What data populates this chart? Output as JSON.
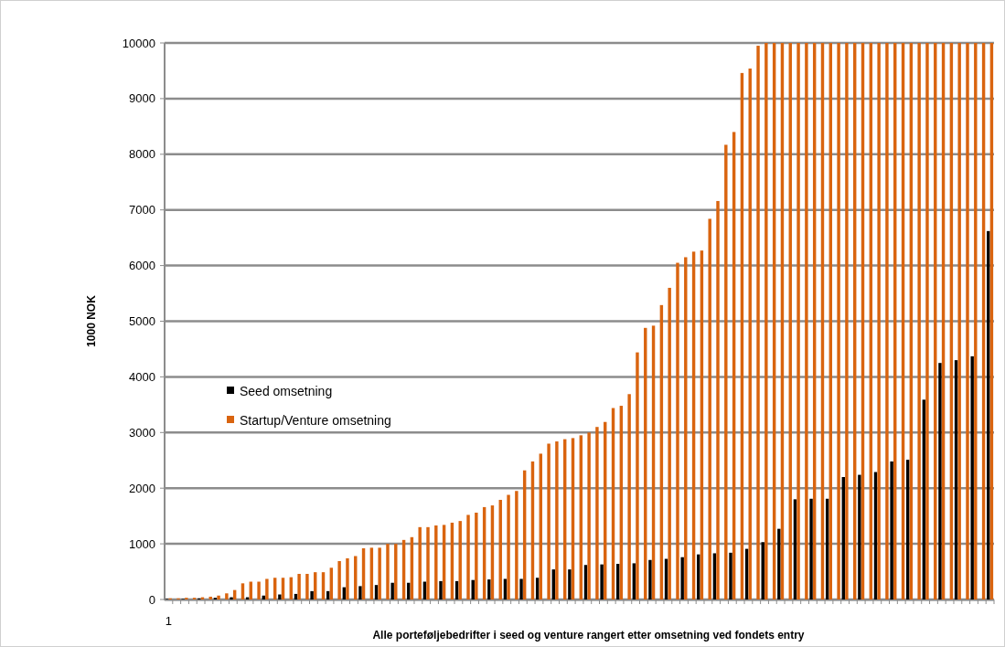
{
  "chart_data": {
    "type": "bar",
    "xlabel": "Alle porteføljebedrifter i seed og venture rangert etter omsetning ved fondets entry",
    "ylabel": "1000 NOK",
    "categories": [
      "1",
      null,
      null,
      null,
      null,
      null,
      null,
      null,
      null,
      null,
      null,
      null,
      null,
      null,
      null,
      null,
      null,
      null,
      null,
      null,
      null,
      null,
      null,
      null,
      null,
      null,
      null,
      null,
      null,
      null,
      null,
      null,
      null,
      null,
      null,
      null,
      null,
      null,
      null,
      null,
      null,
      null,
      null,
      null,
      null,
      null,
      null,
      null,
      null,
      null,
      null,
      null,
      null,
      null,
      null,
      null,
      null,
      null,
      null,
      null,
      null,
      null,
      null,
      null,
      null,
      null,
      null,
      null,
      null,
      null,
      null,
      null,
      null,
      null,
      null,
      null,
      null,
      null,
      null,
      null,
      null,
      null,
      null,
      null,
      null,
      null,
      null,
      null,
      null,
      null,
      null,
      null,
      null,
      null,
      null,
      null,
      null,
      null,
      null,
      null,
      null,
      null,
      null
    ],
    "series": [
      {
        "name": "Seed omsetning",
        "color": "#000000",
        "values": [
          10,
          null,
          10,
          null,
          20,
          null,
          30,
          null,
          40,
          null,
          40,
          null,
          70,
          null,
          90,
          null,
          100,
          null,
          150,
          null,
          150,
          null,
          220,
          null,
          240,
          null,
          260,
          null,
          300,
          null,
          300,
          null,
          320,
          null,
          330,
          null,
          330,
          null,
          350,
          null,
          360,
          null,
          370,
          null,
          370,
          null,
          390,
          null,
          540,
          null,
          540,
          null,
          620,
          null,
          630,
          null,
          640,
          null,
          650,
          null,
          710,
          null,
          730,
          null,
          760,
          null,
          810,
          null,
          830,
          null,
          840,
          null,
          910,
          null,
          1030,
          null,
          1270,
          null,
          1800,
          null,
          1810,
          null,
          1810,
          null,
          2200,
          null,
          2240,
          null,
          2290,
          null,
          2480,
          null,
          2510,
          null,
          3590,
          null,
          4250,
          null,
          4300,
          null,
          4370,
          null,
          6620
        ]
      },
      {
        "name": "Startup/Venture omsetning",
        "color": "#d9640f",
        "values": [
          20,
          20,
          30,
          30,
          40,
          50,
          70,
          110,
          170,
          290,
          320,
          320,
          370,
          390,
          390,
          400,
          460,
          460,
          490,
          490,
          570,
          690,
          740,
          780,
          920,
          930,
          930,
          1000,
          1000,
          1070,
          1120,
          1300,
          1300,
          1330,
          1340,
          1380,
          1410,
          1520,
          1560,
          1660,
          1690,
          1790,
          1880,
          1950,
          2320,
          2480,
          2620,
          2800,
          2840,
          2880,
          2900,
          2950,
          3000,
          3100,
          3190,
          3440,
          3480,
          3690,
          4440,
          4880,
          4920,
          5290,
          5600,
          6050,
          6150,
          6250,
          6270,
          6840,
          7160,
          8170,
          8400,
          9460,
          9540,
          9950,
          10000,
          10000,
          10000,
          10000,
          10000,
          10000,
          10000,
          10000,
          10000,
          10000,
          10000,
          10000,
          10000,
          10000,
          10000,
          10000,
          10000,
          10000,
          10000,
          10000,
          10000,
          10000,
          10000,
          10000,
          10000,
          10000,
          10000,
          10000,
          10000
        ]
      }
    ],
    "ylim": [
      0,
      10000
    ],
    "yticks": [
      0,
      1000,
      2000,
      3000,
      4000,
      5000,
      6000,
      7000,
      8000,
      9000,
      10000
    ],
    "grid": true,
    "legend": "left"
  }
}
